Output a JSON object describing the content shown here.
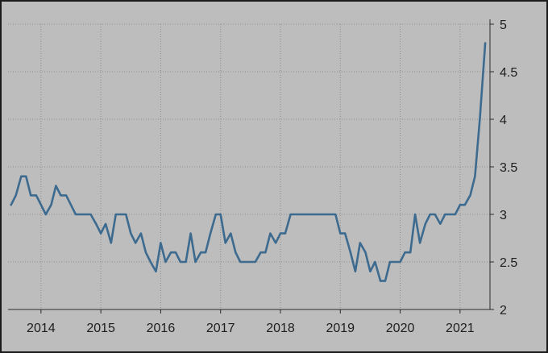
{
  "chart_data": {
    "type": "line",
    "title": "",
    "xlabel": "",
    "ylabel": "",
    "xlim": [
      2013.45,
      2021.5
    ],
    "ylim": [
      2,
      5
    ],
    "grid": true,
    "x_ticks": [
      2014,
      2015,
      2016,
      2017,
      2018,
      2019,
      2020,
      2021
    ],
    "x_tick_labels": [
      "2014",
      "2015",
      "2016",
      "2017",
      "2018",
      "2019",
      "2020",
      "2021"
    ],
    "y_ticks": [
      2,
      2.5,
      3,
      3.5,
      4,
      4.5,
      5
    ],
    "y_tick_labels": [
      "2",
      "2.5",
      "3",
      "3.5",
      "4",
      "4.5",
      "5"
    ],
    "line_color": "#3d6a8f",
    "series": [
      {
        "x": [
          2013.5,
          2013.58,
          2013.67,
          2013.75,
          2013.83,
          2013.92,
          2014.0,
          2014.08,
          2014.17,
          2014.25,
          2014.33,
          2014.42,
          2014.5,
          2014.58,
          2014.67,
          2014.75,
          2014.83,
          2014.92,
          2015.0,
          2015.08,
          2015.17,
          2015.25,
          2015.33,
          2015.42,
          2015.5,
          2015.58,
          2015.67,
          2015.75,
          2015.83,
          2015.92,
          2016.0,
          2016.08,
          2016.17,
          2016.25,
          2016.33,
          2016.42,
          2016.5,
          2016.58,
          2016.67,
          2016.75,
          2016.83,
          2016.92,
          2017.0,
          2017.08,
          2017.17,
          2017.25,
          2017.33,
          2017.42,
          2017.5,
          2017.58,
          2017.67,
          2017.75,
          2017.83,
          2017.92,
          2018.0,
          2018.08,
          2018.17,
          2018.25,
          2018.33,
          2018.42,
          2018.5,
          2018.58,
          2018.67,
          2018.75,
          2018.83,
          2018.92,
          2019.0,
          2019.08,
          2019.17,
          2019.25,
          2019.33,
          2019.42,
          2019.5,
          2019.58,
          2019.67,
          2019.75,
          2019.83,
          2019.92,
          2020.0,
          2020.08,
          2020.17,
          2020.25,
          2020.33,
          2020.42,
          2020.5,
          2020.58,
          2020.67,
          2020.75,
          2020.83,
          2020.92,
          2021.0,
          2021.08,
          2021.17,
          2021.25,
          2021.33,
          2021.42
        ],
        "y": [
          3.1,
          3.2,
          3.4,
          3.4,
          3.2,
          3.2,
          3.1,
          3.0,
          3.1,
          3.3,
          3.2,
          3.2,
          3.1,
          3.0,
          3.0,
          3.0,
          3.0,
          2.9,
          2.8,
          2.9,
          2.7,
          3.0,
          3.0,
          3.0,
          2.8,
          2.7,
          2.8,
          2.6,
          2.5,
          2.4,
          2.7,
          2.5,
          2.6,
          2.6,
          2.5,
          2.5,
          2.8,
          2.5,
          2.6,
          2.6,
          2.8,
          3.0,
          3.0,
          2.7,
          2.8,
          2.6,
          2.5,
          2.5,
          2.5,
          2.5,
          2.6,
          2.6,
          2.8,
          2.7,
          2.8,
          2.8,
          3.0,
          3.0,
          3.0,
          3.0,
          3.0,
          3.0,
          3.0,
          3.0,
          3.0,
          3.0,
          2.8,
          2.8,
          2.6,
          2.4,
          2.7,
          2.6,
          2.4,
          2.5,
          2.3,
          2.3,
          2.5,
          2.5,
          2.5,
          2.6,
          2.6,
          3.0,
          2.7,
          2.9,
          3.0,
          3.0,
          2.9,
          3.0,
          3.0,
          3.0,
          3.1,
          3.1,
          3.2,
          3.4,
          4.0,
          4.8
        ]
      }
    ]
  }
}
